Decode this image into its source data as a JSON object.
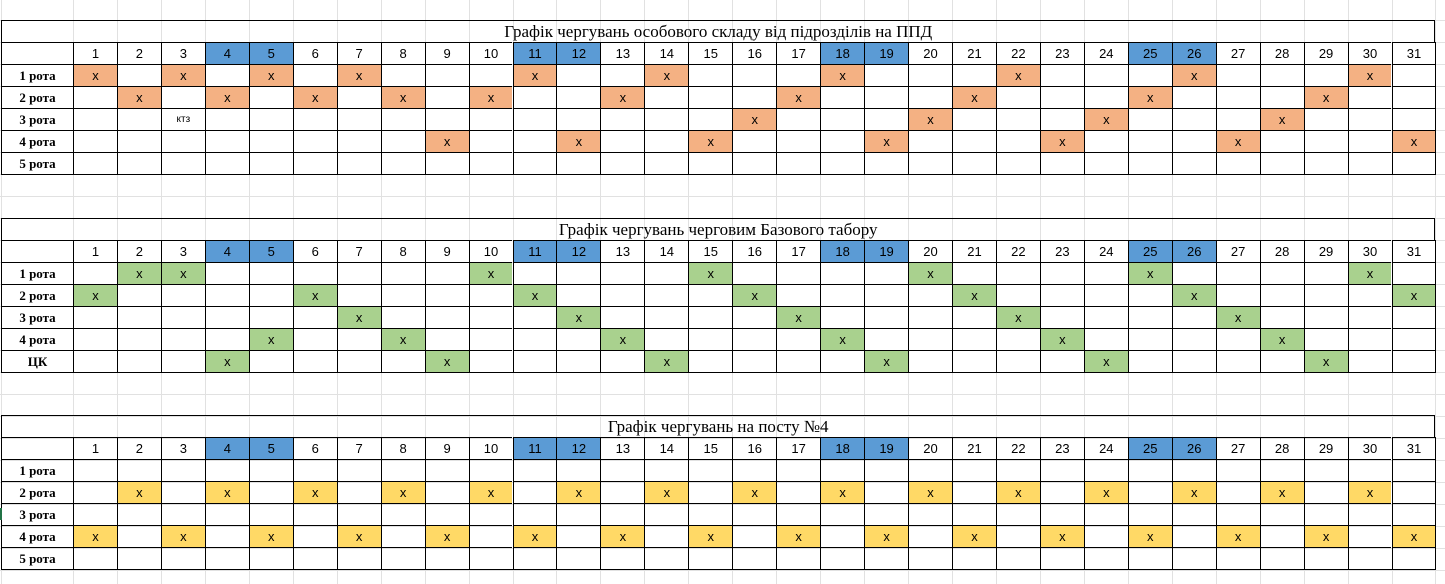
{
  "colors": {
    "weekend_header": "#5b9bd5",
    "orange": "#f4b183",
    "green": "#a9d18e",
    "yellow": "#ffd966"
  },
  "days": [
    1,
    2,
    3,
    4,
    5,
    6,
    7,
    8,
    9,
    10,
    11,
    12,
    13,
    14,
    15,
    16,
    17,
    18,
    19,
    20,
    21,
    22,
    23,
    24,
    25,
    26,
    27,
    28,
    29,
    30,
    31
  ],
  "weekend_days": [
    4,
    5,
    11,
    12,
    18,
    19,
    25,
    26
  ],
  "mark_symbol": "х",
  "tables": [
    {
      "title": "Графік чергувань особового складу від підрозділів на ППД",
      "color": "orange",
      "rows": [
        {
          "label": "1 рота",
          "marks": [
            1,
            3,
            5,
            7,
            11,
            14,
            18,
            22,
            26,
            30
          ],
          "notes": {}
        },
        {
          "label": "2 рота",
          "marks": [
            2,
            4,
            6,
            8,
            10,
            13,
            17,
            21,
            25,
            29
          ],
          "notes": {}
        },
        {
          "label": "3 рота",
          "marks": [
            16,
            20,
            24,
            28
          ],
          "notes": {
            "3": "ктз"
          }
        },
        {
          "label": "4 рота",
          "marks": [
            9,
            12,
            15,
            19,
            23,
            27,
            31
          ],
          "notes": {}
        },
        {
          "label": "5 рота",
          "marks": [],
          "notes": {}
        }
      ]
    },
    {
      "title": "Графік чергувань черговим Базового табору",
      "color": "green",
      "rows": [
        {
          "label": "1 рота",
          "marks": [
            2,
            3,
            10,
            15,
            20,
            25,
            30
          ],
          "notes": {}
        },
        {
          "label": "2 рота",
          "marks": [
            1,
            6,
            11,
            16,
            21,
            26,
            31
          ],
          "notes": {}
        },
        {
          "label": "3 рота",
          "marks": [
            7,
            12,
            17,
            22,
            27
          ],
          "notes": {}
        },
        {
          "label": "4 рота",
          "marks": [
            5,
            8,
            13,
            18,
            23,
            28
          ],
          "notes": {}
        },
        {
          "label": "ЦК",
          "marks": [
            4,
            9,
            14,
            19,
            24,
            29
          ],
          "notes": {}
        }
      ]
    },
    {
      "title": "Графік чергувань на посту №4",
      "color": "yellow",
      "rows": [
        {
          "label": "1 рота",
          "marks": [],
          "notes": {}
        },
        {
          "label": "2 рота",
          "marks": [
            2,
            4,
            6,
            8,
            10,
            12,
            14,
            16,
            18,
            20,
            22,
            24,
            26,
            28,
            30
          ],
          "notes": {}
        },
        {
          "label": "3 рота",
          "marks": [],
          "notes": {}
        },
        {
          "label": "4 рота",
          "marks": [
            1,
            3,
            5,
            7,
            9,
            11,
            13,
            15,
            17,
            19,
            21,
            23,
            25,
            27,
            29,
            31
          ],
          "notes": {}
        },
        {
          "label": "5 рота",
          "marks": [],
          "notes": {}
        }
      ]
    }
  ]
}
